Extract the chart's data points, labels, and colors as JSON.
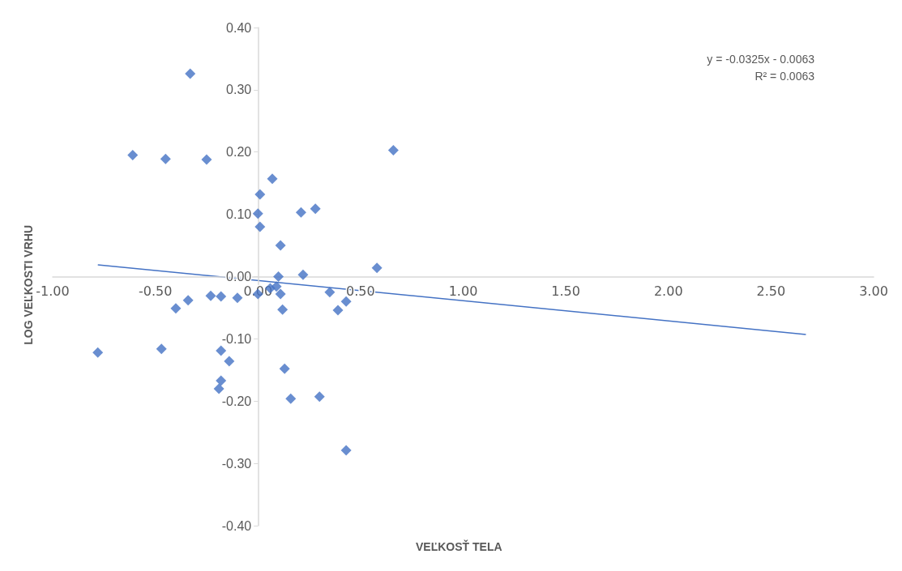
{
  "chart_data": {
    "type": "scatter",
    "xlabel": "VEĽKOSŤ TELA",
    "ylabel": "LOG VEĽKOSTI VRHU",
    "annotations": [
      "y = -0.0325x - 0.0063",
      "R² = 0.0063"
    ],
    "xlim": [
      -1,
      3
    ],
    "xticks": [
      {
        "value": -1,
        "label": "-1.00"
      },
      {
        "value": -0.5,
        "label": "-0.50"
      },
      {
        "value": 0,
        "label": "0.00"
      },
      {
        "value": 0.5,
        "label": "0.50"
      },
      {
        "value": 1,
        "label": "1.00"
      },
      {
        "value": 1.5,
        "label": "1.50"
      },
      {
        "value": 2,
        "label": "2.00"
      },
      {
        "value": 2.5,
        "label": "2.50"
      },
      {
        "value": 3,
        "label": "3.00"
      }
    ],
    "ylim": [
      -0.4,
      0.4
    ],
    "yticks": [
      {
        "value": -0.4,
        "label": "-0.40"
      },
      {
        "value": -0.3,
        "label": "-0.30"
      },
      {
        "value": -0.2,
        "label": "-0.20"
      },
      {
        "value": -0.1,
        "label": "-0.10"
      },
      {
        "value": 0,
        "label": "0.00"
      },
      {
        "value": 0.1,
        "label": "0.10"
      },
      {
        "value": 0.2,
        "label": "0.20"
      },
      {
        "value": 0.3,
        "label": "0.30"
      },
      {
        "value": 0.4,
        "label": "0.40"
      }
    ],
    "grid": false,
    "marker": "diamond",
    "series": [
      {
        "color": "#4472c4",
        "x": [
          -0.33,
          -0.61,
          -0.45,
          -0.25,
          0.66,
          0.07,
          0.01,
          0.0,
          0.01,
          0.21,
          0.28,
          0.11,
          0.58,
          0.1,
          0.22,
          -0.23,
          -0.18,
          -0.1,
          0.0,
          0.06,
          0.09,
          0.11,
          0.12,
          0.35,
          0.39,
          0.43,
          -0.34,
          -0.4,
          -0.78,
          -0.47,
          -0.18,
          -0.14,
          -0.18,
          -0.19,
          0.13,
          0.16,
          0.3,
          0.43
        ],
        "values": [
          0.326,
          0.195,
          0.189,
          0.188,
          0.203,
          0.157,
          0.132,
          0.101,
          0.08,
          0.103,
          0.109,
          0.05,
          0.014,
          0.0,
          0.003,
          -0.031,
          -0.032,
          -0.034,
          -0.028,
          -0.019,
          -0.016,
          -0.028,
          -0.053,
          -0.025,
          -0.054,
          -0.04,
          -0.038,
          -0.051,
          -0.122,
          -0.116,
          -0.119,
          -0.136,
          -0.167,
          -0.18,
          -0.148,
          -0.196,
          -0.193,
          -0.279
        ]
      },
      {
        "type": "line",
        "color": "#4472c4",
        "marker": "none",
        "line_style": "solid",
        "x": [
          -0.78,
          2.67
        ],
        "values": [
          0.019,
          -0.093
        ]
      }
    ]
  }
}
